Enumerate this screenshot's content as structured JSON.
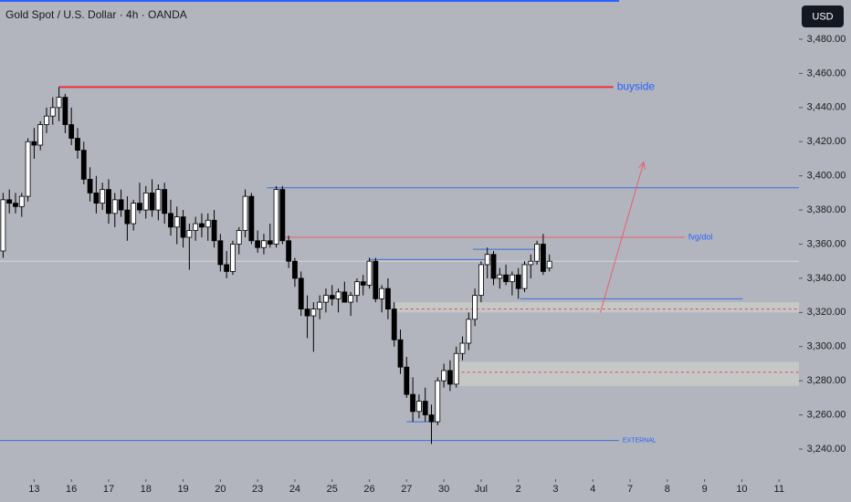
{
  "chart_data": {
    "type": "candlestick",
    "title": "Gold Spot / U.S. Dollar · 4h · OANDA",
    "currency": "USD",
    "up_color": "#ffffff",
    "down_color": "#000000",
    "open": [
      3356,
      3386,
      3384,
      3382,
      3388,
      3420,
      3418,
      3430,
      3435,
      3440,
      3446,
      3430,
      3422,
      3415,
      3398,
      3390,
      3384,
      3392,
      3378,
      3386,
      3380,
      3372,
      3384,
      3380,
      3390,
      3380,
      3392,
      3378,
      3370,
      3376,
      3364,
      3368,
      3372,
      3370,
      3374,
      3362,
      3348,
      3344,
      3360,
      3368,
      3388,
      3362,
      3358,
      3362,
      3360,
      3392,
      3362,
      3350,
      3340,
      3322,
      3318,
      3322,
      3326,
      3330,
      3328,
      3332,
      3326,
      3330,
      3338,
      3336,
      3350,
      3328,
      3334,
      3322,
      3304,
      3288,
      3272,
      3262,
      3268,
      3260,
      3256,
      3280,
      3286,
      3278,
      3296,
      3302,
      3316,
      3330,
      3348,
      3354,
      3340,
      3342,
      3338,
      3342,
      3334,
      3348,
      3350,
      3360,
      3346
    ],
    "high": [
      3390,
      3392,
      3390,
      3390,
      3422,
      3428,
      3432,
      3440,
      3446,
      3452,
      3448,
      3440,
      3428,
      3420,
      3405,
      3400,
      3396,
      3398,
      3390,
      3392,
      3388,
      3386,
      3396,
      3394,
      3398,
      3395,
      3396,
      3386,
      3382,
      3380,
      3372,
      3376,
      3378,
      3378,
      3380,
      3366,
      3356,
      3362,
      3370,
      3392,
      3390,
      3368,
      3366,
      3372,
      3394,
      3394,
      3365,
      3352,
      3344,
      3330,
      3326,
      3330,
      3334,
      3336,
      3334,
      3338,
      3332,
      3340,
      3342,
      3352,
      3352,
      3336,
      3340,
      3326,
      3310,
      3294,
      3282,
      3272,
      3276,
      3266,
      3282,
      3290,
      3292,
      3300,
      3306,
      3320,
      3334,
      3350,
      3358,
      3356,
      3346,
      3348,
      3344,
      3346,
      3350,
      3354,
      3362,
      3366,
      3354
    ],
    "low": [
      3352,
      3378,
      3378,
      3376,
      3385,
      3410,
      3415,
      3425,
      3430,
      3432,
      3425,
      3418,
      3410,
      3395,
      3385,
      3378,
      3380,
      3372,
      3370,
      3376,
      3362,
      3368,
      3378,
      3375,
      3376,
      3374,
      3372,
      3365,
      3360,
      3358,
      3345,
      3362,
      3364,
      3362,
      3358,
      3344,
      3340,
      3342,
      3354,
      3364,
      3360,
      3355,
      3354,
      3358,
      3358,
      3360,
      3346,
      3335,
      3318,
      3305,
      3297,
      3316,
      3320,
      3324,
      3320,
      3326,
      3318,
      3326,
      3330,
      3334,
      3326,
      3320,
      3316,
      3300,
      3284,
      3270,
      3256,
      3258,
      3256,
      3243,
      3254,
      3276,
      3274,
      3276,
      3292,
      3298,
      3312,
      3326,
      3340,
      3336,
      3334,
      3336,
      3330,
      3328,
      3332,
      3340,
      3348,
      3342,
      3344
    ],
    "close": [
      3386,
      3384,
      3382,
      3388,
      3420,
      3418,
      3430,
      3435,
      3440,
      3446,
      3430,
      3422,
      3415,
      3398,
      3390,
      3384,
      3392,
      3378,
      3386,
      3380,
      3372,
      3384,
      3380,
      3390,
      3380,
      3392,
      3378,
      3370,
      3376,
      3364,
      3368,
      3372,
      3370,
      3374,
      3362,
      3348,
      3344,
      3360,
      3368,
      3388,
      3362,
      3358,
      3362,
      3360,
      3392,
      3362,
      3350,
      3340,
      3322,
      3318,
      3322,
      3326,
      3330,
      3328,
      3332,
      3326,
      3330,
      3338,
      3336,
      3350,
      3328,
      3334,
      3322,
      3304,
      3288,
      3272,
      3262,
      3268,
      3260,
      3256,
      3280,
      3286,
      3278,
      3296,
      3302,
      3316,
      3330,
      3348,
      3354,
      3340,
      3342,
      3338,
      3342,
      3334,
      3348,
      3350,
      3360,
      3344,
      3350
    ],
    "xlim": [
      -0.5,
      128.2
    ],
    "xticks": [
      {
        "value": 5,
        "label": "13"
      },
      {
        "value": 11,
        "label": "16"
      },
      {
        "value": 17,
        "label": "17"
      },
      {
        "value": 23,
        "label": "18"
      },
      {
        "value": 29,
        "label": "19"
      },
      {
        "value": 35,
        "label": "20"
      },
      {
        "value": 41,
        "label": "23"
      },
      {
        "value": 47,
        "label": "24"
      },
      {
        "value": 53,
        "label": "25"
      },
      {
        "value": 59,
        "label": "26"
      },
      {
        "value": 65,
        "label": "27"
      },
      {
        "value": 71,
        "label": "30"
      },
      {
        "value": 77,
        "label": "Jul"
      },
      {
        "value": 83,
        "label": "2"
      },
      {
        "value": 89,
        "label": "3"
      },
      {
        "value": 95,
        "label": "4"
      },
      {
        "value": 101,
        "label": "7"
      },
      {
        "value": 107,
        "label": "8"
      },
      {
        "value": 113,
        "label": "9"
      },
      {
        "value": 119,
        "label": "10"
      },
      {
        "value": 125,
        "label": "11"
      }
    ],
    "ylim": [
      3480,
      3240
    ],
    "yticks": [
      {
        "value": 3480,
        "label": "3,480.00"
      },
      {
        "value": 3460,
        "label": "3,460.00"
      },
      {
        "value": 3440,
        "label": "3,440.00"
      },
      {
        "value": 3420,
        "label": "3,420.00"
      },
      {
        "value": 3400,
        "label": "3,400.00"
      },
      {
        "value": 3380,
        "label": "3,380.00"
      },
      {
        "value": 3360,
        "label": "3,360.00"
      },
      {
        "value": 3340,
        "label": "3,340.00"
      },
      {
        "value": 3320,
        "label": "3,320.00"
      },
      {
        "value": 3300,
        "label": "3,300.00"
      },
      {
        "value": 3280,
        "label": "3,280.00"
      },
      {
        "value": 3260,
        "label": "3,260.00"
      },
      {
        "value": 3240,
        "label": "3,240.00"
      }
    ],
    "zones": [
      {
        "low": 3320,
        "high": 3326,
        "from": 63,
        "dash": 3322
      },
      {
        "low": 3277,
        "high": 3291,
        "from": 73,
        "dash": 3285
      }
    ],
    "levels": [
      {
        "value": 3452,
        "from": 9,
        "to": 98.3,
        "color": "#e8313a",
        "label": "buyside"
      },
      {
        "value": 3393,
        "from": 42.5,
        "to": 128.2,
        "color": "#3a6fd8"
      },
      {
        "value": 3364,
        "from": 45.1,
        "to": 109.8,
        "color": "#e8606a",
        "label": "fvg/dol"
      },
      {
        "value": 3357,
        "from": 75.7,
        "to": 86.6,
        "color": "#3a6fd8"
      },
      {
        "value": 3351,
        "from": 59.1,
        "to": 78.9,
        "color": "#3a6fd8"
      },
      {
        "value": 3328,
        "from": 83.3,
        "to": 119.1,
        "color": "#3a6fd8"
      },
      {
        "value": 3256,
        "from": 65,
        "to": 70,
        "color": "#3a6fd8"
      },
      {
        "value": 3245,
        "from": -0.5,
        "to": 99.2,
        "color": "#3a6fd8",
        "label": "EXTERNAL"
      }
    ],
    "arrow": {
      "x": [
        96.2,
        103.2
      ],
      "y": [
        3320,
        3408
      ],
      "color": "#e8606a"
    }
  }
}
